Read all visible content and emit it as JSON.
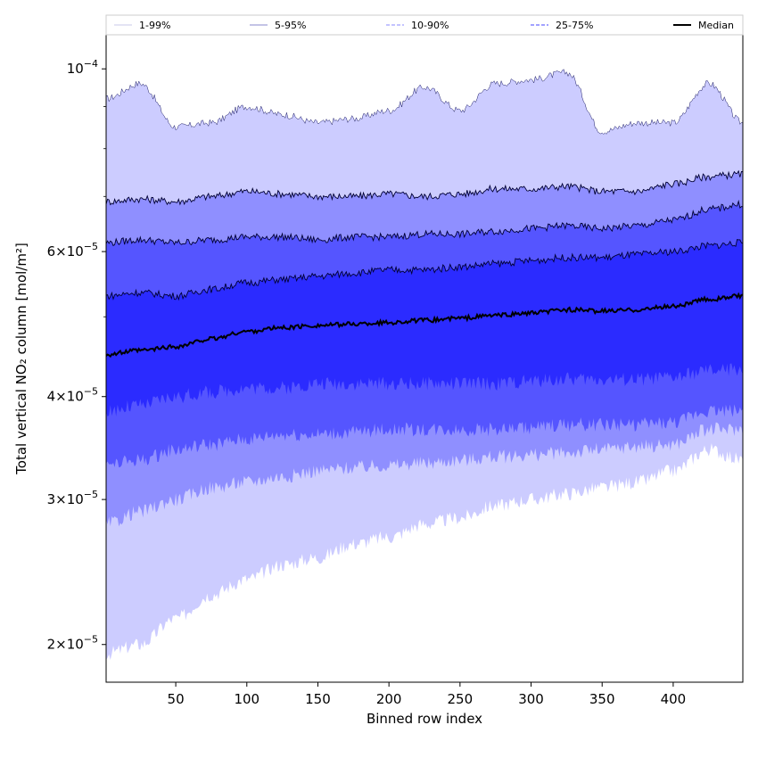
{
  "chart_data": {
    "type": "area",
    "xlabel": "Binned row index",
    "ylabel": "Total vertical NO₂ column [mol/m²]",
    "x_range": [
      1,
      449
    ],
    "y_scale": "log",
    "ylim": [
      1.8e-05,
      0.00011
    ],
    "x_ticks": [
      50,
      100,
      150,
      200,
      250,
      300,
      350,
      400
    ],
    "x_tick_labels": [
      "50",
      "100",
      "150",
      "200",
      "250",
      "300",
      "350",
      "400"
    ],
    "y_ticks": [
      {
        "value": 2e-05,
        "mant": "2",
        "exp": "−5"
      },
      {
        "value": 3e-05,
        "mant": "3",
        "exp": "−5"
      },
      {
        "value": 4e-05,
        "mant": "4",
        "exp": "−5"
      },
      {
        "value": 6e-05,
        "mant": "6",
        "exp": "−5"
      },
      {
        "value": 0.0001,
        "mant": "",
        "exp": "−4"
      }
    ],
    "y_tick_prefix": "10",
    "y_tick_times": "×",
    "y_minor_ticks": [
      5e-05,
      7e-05,
      8e-05,
      9e-05
    ],
    "grid": false,
    "legend_position": "top",
    "legend": [
      {
        "label": "1-99%",
        "color": "#c8c8e8",
        "style": "solid"
      },
      {
        "label": "5-95%",
        "color": "#8888cc",
        "style": "solid"
      },
      {
        "label": "10-90%",
        "color": "#8a8aff",
        "style": "dashed"
      },
      {
        "label": "25-75%",
        "color": "#4444ff",
        "style": "dashed"
      },
      {
        "label": "Median",
        "color": "#000000",
        "style": "solid"
      }
    ],
    "fill_colors": [
      "#ccccff",
      "#8f8fff",
      "#5555ff",
      "#2b2bff"
    ],
    "x": [
      1,
      25,
      50,
      75,
      100,
      125,
      150,
      175,
      200,
      225,
      250,
      275,
      300,
      325,
      350,
      375,
      400,
      425,
      449
    ],
    "series": [
      {
        "name": "1-99%",
        "lower": [
          1.95e-05,
          2e-05,
          2.15e-05,
          2.3e-05,
          2.4e-05,
          2.5e-05,
          2.55e-05,
          2.65e-05,
          2.7e-05,
          2.8e-05,
          2.85e-05,
          2.95e-05,
          3e-05,
          3.05e-05,
          3.1e-05,
          3.15e-05,
          3.25e-05,
          3.45e-05,
          3.35e-05
        ],
        "upper": [
          9.2e-05,
          9.6e-05,
          8.5e-05,
          8.6e-05,
          9e-05,
          8.8e-05,
          8.6e-05,
          8.7e-05,
          8.9e-05,
          9.5e-05,
          8.9e-05,
          9.6e-05,
          9.7e-05,
          9.9e-05,
          8.4e-05,
          8.6e-05,
          8.6e-05,
          9.6e-05,
          8.6e-05
        ]
      },
      {
        "name": "5-95%",
        "lower": [
          2.8e-05,
          2.9e-05,
          3e-05,
          3.1e-05,
          3.15e-05,
          3.2e-05,
          3.25e-05,
          3.28e-05,
          3.3e-05,
          3.32e-05,
          3.35e-05,
          3.38e-05,
          3.4e-05,
          3.42e-05,
          3.45e-05,
          3.48e-05,
          3.5e-05,
          3.65e-05,
          3.65e-05
        ],
        "upper": [
          6.9e-05,
          6.95e-05,
          6.9e-05,
          7e-05,
          7.1e-05,
          7.05e-05,
          7e-05,
          7e-05,
          7.05e-05,
          7e-05,
          7.05e-05,
          7.15e-05,
          7.15e-05,
          7.2e-05,
          7.1e-05,
          7.1e-05,
          7.25e-05,
          7.4e-05,
          7.45e-05
        ]
      },
      {
        "name": "10-90%",
        "lower": [
          3.3e-05,
          3.35e-05,
          3.45e-05,
          3.5e-05,
          3.55e-05,
          3.6e-05,
          3.6e-05,
          3.62e-05,
          3.65e-05,
          3.65e-05,
          3.65e-05,
          3.65e-05,
          3.67e-05,
          3.7e-05,
          3.7e-05,
          3.7e-05,
          3.72e-05,
          3.85e-05,
          3.85e-05
        ],
        "upper": [
          6.15e-05,
          6.2e-05,
          6.15e-05,
          6.2e-05,
          6.25e-05,
          6.25e-05,
          6.2e-05,
          6.25e-05,
          6.25e-05,
          6.3e-05,
          6.3e-05,
          6.35e-05,
          6.4e-05,
          6.45e-05,
          6.4e-05,
          6.45e-05,
          6.55e-05,
          6.75e-05,
          6.85e-05
        ]
      },
      {
        "name": "25-75%",
        "lower": [
          3.85e-05,
          3.9e-05,
          4e-05,
          4.05e-05,
          4.1e-05,
          4.1e-05,
          4.15e-05,
          4.15e-05,
          4.15e-05,
          4.15e-05,
          4.15e-05,
          4.15e-05,
          4.18e-05,
          4.2e-05,
          4.2e-05,
          4.2e-05,
          4.22e-05,
          4.3e-05,
          4.32e-05
        ],
        "upper": [
          5.3e-05,
          5.35e-05,
          5.3e-05,
          5.4e-05,
          5.5e-05,
          5.55e-05,
          5.6e-05,
          5.65e-05,
          5.7e-05,
          5.7e-05,
          5.75e-05,
          5.8e-05,
          5.85e-05,
          5.9e-05,
          5.9e-05,
          5.95e-05,
          6e-05,
          6.1e-05,
          6.15e-05
        ]
      }
    ],
    "median": [
      4.5e-05,
      4.55e-05,
      4.6e-05,
      4.7e-05,
      4.8e-05,
      4.85e-05,
      4.88e-05,
      4.9e-05,
      4.92e-05,
      4.95e-05,
      4.98e-05,
      5.02e-05,
      5.05e-05,
      5.1e-05,
      5.08e-05,
      5.1e-05,
      5.15e-05,
      5.25e-05,
      5.3e-05
    ]
  }
}
